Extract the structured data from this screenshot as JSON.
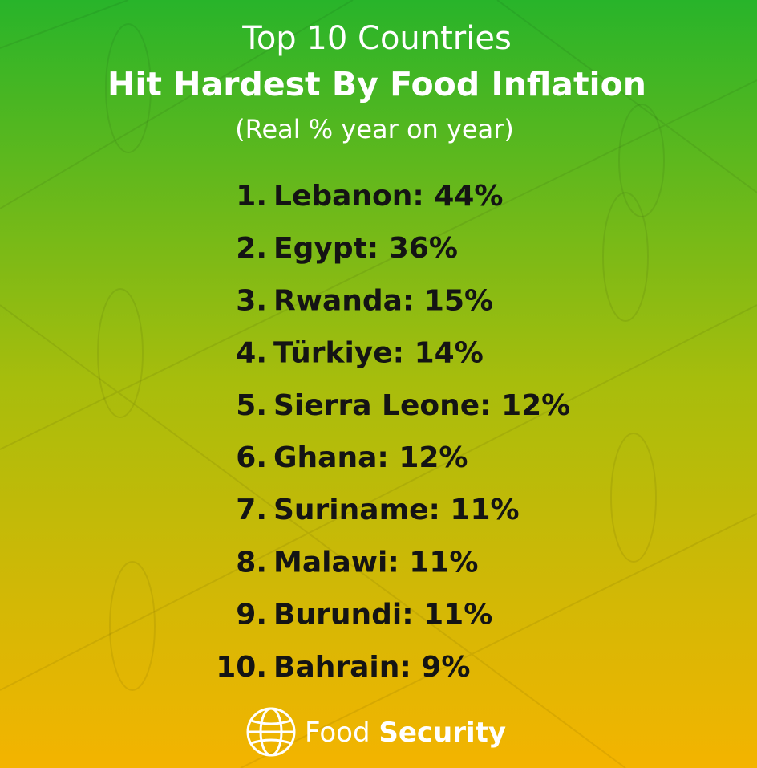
{
  "header": {
    "title": "Top 10 Countries",
    "headline": "Hit Hardest By Food Inflation",
    "subtitle": "(Real % year on year)"
  },
  "list": [
    {
      "rank": "1.",
      "label": "Lebanon: 44%"
    },
    {
      "rank": "2.",
      "label": "Egypt: 36%"
    },
    {
      "rank": "3.",
      "label": "Rwanda: 15%"
    },
    {
      "rank": "4.",
      "label": "Türkiye: 14%"
    },
    {
      "rank": "5.",
      "label": "Sierra Leone: 12%"
    },
    {
      "rank": "6.",
      "label": "Ghana: 12%"
    },
    {
      "rank": "7.",
      "label": "Suriname: 11%"
    },
    {
      "rank": "8.",
      "label": "Malawi: 11%"
    },
    {
      "rank": "9.",
      "label": "Burundi: 11%"
    },
    {
      "rank": "10.",
      "label": "Bahrain: 9%"
    }
  ],
  "footer": {
    "brand_light": "Food",
    "brand_bold": "Security"
  }
}
